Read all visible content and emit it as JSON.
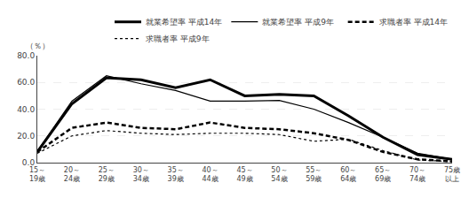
{
  "chart_data": {
    "type": "line",
    "y_label": "（％）",
    "categories": [
      "15～\n19歳",
      "20～\n24歳",
      "25～\n29歳",
      "30～\n34歳",
      "35～\n39歳",
      "40～\n44歳",
      "45～\n49歳",
      "50～\n54歳",
      "55～\n59歳",
      "60～\n64歳",
      "65～\n69歳",
      "70～\n74歳",
      "75歳\n以上"
    ],
    "series": [
      {
        "name": "就業希望率 平成14年",
        "color": "#000000",
        "line_style": "solid",
        "values": [
          8.0,
          44.0,
          63.5,
          62.0,
          56.0,
          62.0,
          50.0,
          51.0,
          50.0,
          35.0,
          19.0,
          6.0,
          2.5
        ]
      },
      {
        "name": "就業希望率 平成9年",
        "color": "#000000",
        "line_style": "solid",
        "values": [
          8.5,
          46.0,
          65.0,
          59.0,
          54.0,
          46.0,
          46.0,
          46.5,
          40.0,
          30.0,
          19.0,
          7.0,
          2.5
        ]
      },
      {
        "name": "求職者率 平成14年",
        "color": "#000000",
        "line_style": "dashed",
        "values": [
          8.0,
          26.0,
          30.0,
          26.0,
          25.0,
          30.0,
          26.0,
          25.0,
          22.0,
          17.0,
          8.0,
          2.5,
          1.0
        ]
      },
      {
        "name": "求職者率 平成9年",
        "color": "#000000",
        "line_style": "dashed",
        "values": [
          7.0,
          20.0,
          24.0,
          22.0,
          21.0,
          22.0,
          22.0,
          21.0,
          16.0,
          17.5,
          9.0,
          2.0,
          0.8
        ]
      }
    ],
    "ylim": [
      0.0,
      80.0
    ],
    "yticks": [
      {
        "value": 0.0,
        "label": "0.0"
      },
      {
        "value": 20.0,
        "label": "20.0"
      },
      {
        "value": 40.0,
        "label": "40.0"
      },
      {
        "value": 60.0,
        "label": "60.0"
      },
      {
        "value": 80.0,
        "label": "80.0"
      }
    ],
    "grid": true,
    "legend": "upper right"
  }
}
